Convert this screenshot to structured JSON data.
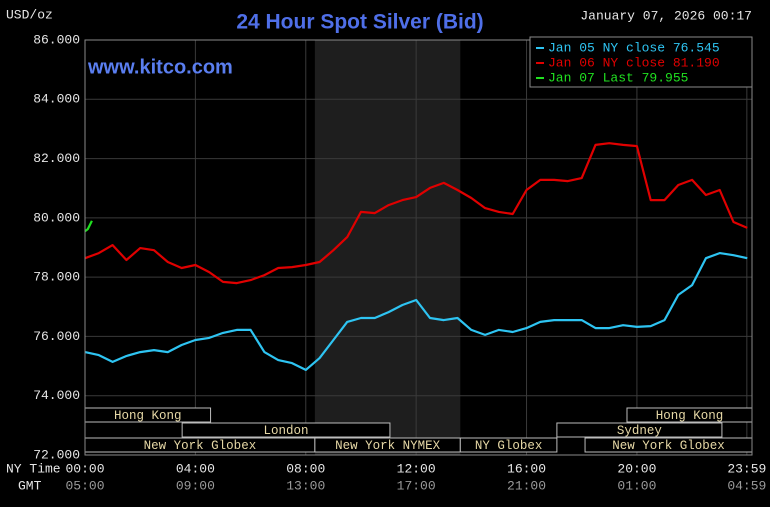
{
  "chart_data": {
    "type": "line",
    "title": "24 Hour Spot Silver (Bid)",
    "y_unit_label": "USD/oz",
    "timestamp": "January 07, 2026 00:17",
    "watermark": "www.kitco.com",
    "x_axis_label": "NY Time",
    "x2_axis_label": "GMT",
    "xlim": [
      0,
      24.17
    ],
    "xticks": [
      {
        "value": 0,
        "label": "00:00"
      },
      {
        "value": 4,
        "label": "04:00"
      },
      {
        "value": 8,
        "label": "08:00"
      },
      {
        "value": 12,
        "label": "12:00"
      },
      {
        "value": 16,
        "label": "16:00"
      },
      {
        "value": 20,
        "label": "20:00"
      },
      {
        "value": 23.983,
        "label": "23:59"
      }
    ],
    "gmt_ticks": [
      {
        "value": 0,
        "label": "05:00"
      },
      {
        "value": 4,
        "label": "09:00"
      },
      {
        "value": 8,
        "label": "13:00"
      },
      {
        "value": 12,
        "label": "17:00"
      },
      {
        "value": 16,
        "label": "21:00"
      },
      {
        "value": 20,
        "label": "01:00"
      },
      {
        "value": 23.983,
        "label": "04:59"
      }
    ],
    "ylim": [
      72,
      86
    ],
    "yticks": [
      {
        "value": 72,
        "label": "72.000"
      },
      {
        "value": 74,
        "label": "74.000"
      },
      {
        "value": 76,
        "label": "76.000"
      },
      {
        "value": 78,
        "label": "78.000"
      },
      {
        "value": 80,
        "label": "80.000"
      },
      {
        "value": 82,
        "label": "82.000"
      },
      {
        "value": 84,
        "label": "84.000"
      },
      {
        "value": 86,
        "label": "86.000"
      }
    ],
    "grid": true,
    "shaded_region": [
      8.33,
      13.6
    ],
    "series": [
      {
        "name": "Jan 05 NY close 76.545",
        "color": "#2ec4f2",
        "x": [
          0,
          0.5,
          1,
          1.5,
          2,
          2.5,
          3,
          3.5,
          4,
          4.5,
          5,
          5.5,
          6,
          6.5,
          7,
          7.5,
          8,
          8.5,
          9,
          9.5,
          10,
          10.5,
          11,
          11.5,
          12,
          12.5,
          13,
          13.5,
          14,
          14.5,
          15,
          15.5,
          16,
          16.5,
          17,
          17.5,
          18,
          18.5,
          19,
          19.5,
          20,
          20.5,
          21,
          21.5,
          22,
          22.5,
          23,
          23.5,
          24
        ],
        "values": [
          75.47,
          75.37,
          75.14,
          75.34,
          75.47,
          75.54,
          75.47,
          75.71,
          75.88,
          75.95,
          76.12,
          76.22,
          76.22,
          75.47,
          75.2,
          75.1,
          74.87,
          75.27,
          75.88,
          76.49,
          76.62,
          76.62,
          76.82,
          77.06,
          77.23,
          76.62,
          76.55,
          76.62,
          76.22,
          76.05,
          76.22,
          76.15,
          76.28,
          76.49,
          76.55,
          76.55,
          76.55,
          76.28,
          76.28,
          76.38,
          76.32,
          76.35,
          76.55,
          77.4,
          77.73,
          78.64,
          78.81,
          78.74,
          78.64
        ]
      },
      {
        "name": "Jan 06 NY close 81.190",
        "color": "#e00000",
        "x": [
          0,
          0.5,
          1,
          1.5,
          2,
          2.5,
          3,
          3.5,
          4,
          4.5,
          5,
          5.5,
          6,
          6.5,
          7,
          7.5,
          8,
          8.5,
          9,
          9.5,
          10,
          10.5,
          11,
          11.5,
          12,
          12.5,
          13,
          13.5,
          14,
          14.5,
          15,
          15.5,
          16,
          16.5,
          17,
          17.5,
          18,
          18.5,
          19,
          19.5,
          20,
          20.5,
          21,
          21.5,
          22,
          22.5,
          23,
          23.5,
          24
        ],
        "values": [
          78.64,
          78.81,
          79.08,
          78.58,
          78.98,
          78.91,
          78.51,
          78.31,
          78.41,
          78.17,
          77.84,
          77.8,
          77.9,
          78.07,
          78.31,
          78.34,
          78.41,
          78.51,
          78.91,
          79.35,
          80.2,
          80.16,
          80.43,
          80.6,
          80.7,
          81.01,
          81.18,
          80.94,
          80.67,
          80.33,
          80.2,
          80.13,
          80.94,
          81.28,
          81.28,
          81.24,
          81.34,
          82.46,
          82.52,
          82.46,
          82.42,
          80.6,
          80.6,
          81.11,
          81.28,
          80.77,
          80.94,
          79.86,
          79.66
        ]
      },
      {
        "name": "Jan 07 Last 79.955",
        "color": "#20e020",
        "x": [
          0,
          0.1,
          0.25
        ],
        "values": [
          79.55,
          79.62,
          79.9
        ]
      }
    ],
    "session_rows": [
      [
        {
          "label": "Hong Kong",
          "start": 0,
          "end": 4.55
        },
        {
          "label": "Hong Kong",
          "start": 19.64,
          "end": 24.17
        }
      ],
      [
        {
          "label": "London",
          "start": 3.52,
          "end": 11.05
        },
        {
          "label": "Sydney",
          "start": 17.1,
          "end": 23.08
        }
      ],
      [
        {
          "label": "New York Globex",
          "start": 0,
          "end": 8.33
        },
        {
          "label": "New York NYMEX",
          "start": 8.33,
          "end": 13.6
        },
        {
          "label": "NY Globex",
          "start": 13.6,
          "end": 17.1
        },
        {
          "label": "New York Globex",
          "start": 18.12,
          "end": 24.17
        }
      ]
    ]
  }
}
